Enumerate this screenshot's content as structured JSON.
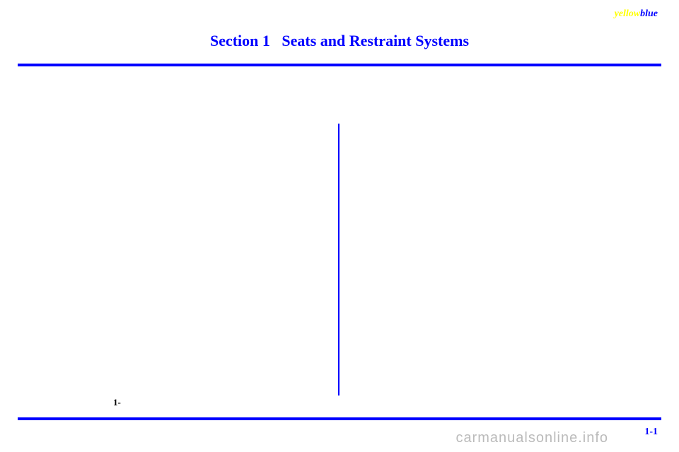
{
  "brand": {
    "part1": "yellow",
    "part2": "blue",
    "color1": "#ffff00",
    "color2": "#0000ff"
  },
  "header": {
    "section_label": "Section 1",
    "section_title": "Seats and Restraint Systems"
  },
  "footer": {
    "left_ref": "1-",
    "page_number": "1-1"
  },
  "watermark": "carmanualsonline.info",
  "colors": {
    "primary_blue": "#0000ff",
    "background": "#ffffff"
  }
}
